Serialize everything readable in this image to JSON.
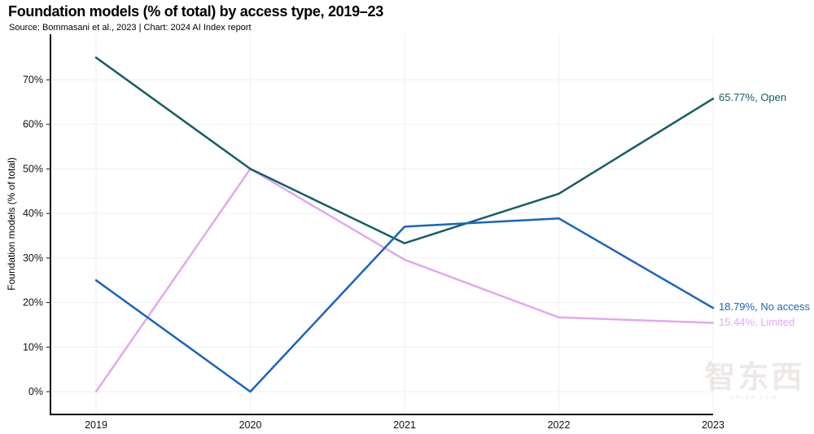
{
  "header": {
    "title": "Foundation models (% of total) by access type, 2019–23",
    "subtitle": "Source: Bommasani et al., 2023 | Chart: 2024 AI Index report"
  },
  "chart_data": {
    "type": "line",
    "title": "Foundation models (% of total) by access type, 2019–23",
    "x_labels": [
      "2019",
      "2020",
      "2021",
      "2022",
      "2023"
    ],
    "ylabel": "Foundation models (% of total)",
    "ylim": [
      0,
      75
    ],
    "yticks": [
      0,
      10,
      20,
      30,
      40,
      50,
      60,
      70
    ],
    "ytick_labels": [
      "0%",
      "10%",
      "20%",
      "30%",
      "40%",
      "50%",
      "60%",
      "70%"
    ],
    "grid": true,
    "legend_position": "right-end-labels",
    "series": [
      {
        "name": "Open",
        "color": "#155E63",
        "values": [
          75,
          50,
          33.33,
          44.44,
          65.77
        ],
        "end_label": "65.77%, Open"
      },
      {
        "name": "No access",
        "color": "#1A64BE",
        "values": [
          25,
          0,
          37.04,
          38.89,
          18.79
        ],
        "end_label": "18.79%, No access"
      },
      {
        "name": "Limited",
        "color": "#E0A9F0",
        "values": [
          0,
          50,
          29.63,
          16.67,
          15.44
        ],
        "end_label": "15.44%, Limited"
      }
    ],
    "colors": {
      "axis": "#111111",
      "grid": "#efefef",
      "tick_text": "#111111"
    }
  },
  "watermark": {
    "logo": "智东西",
    "caption": "zhidx.com"
  }
}
